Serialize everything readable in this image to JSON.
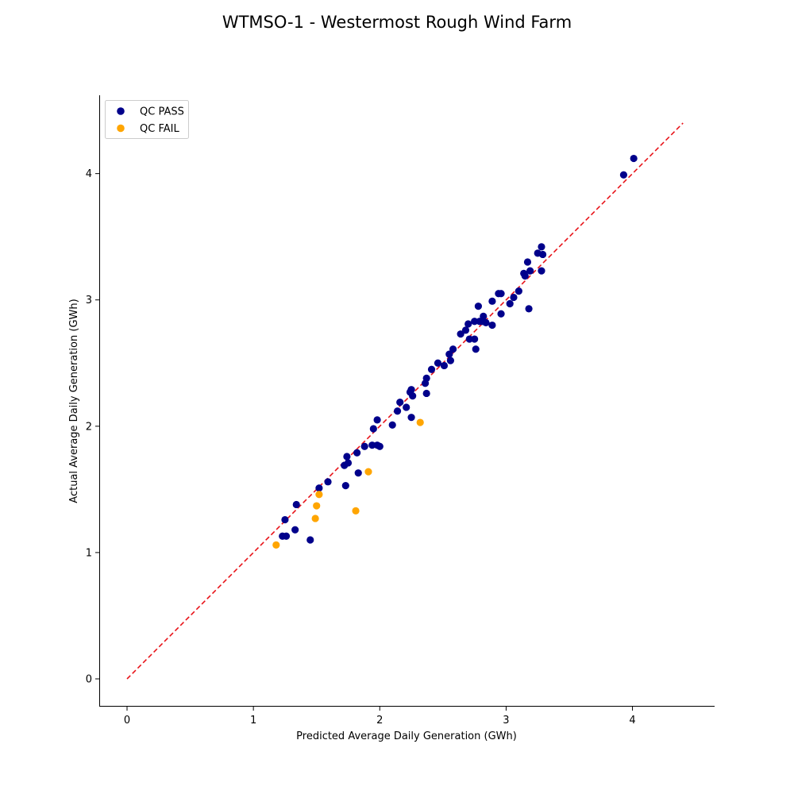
{
  "chart_data": {
    "type": "scatter",
    "title": "WTMSO-1 - Westermost Rough Wind Farm",
    "xlabel": "Predicted Average Daily Generation (GWh)",
    "ylabel": "Actual Average Daily Generation (GWh)",
    "xlim": [
      -0.22,
      4.65
    ],
    "ylim": [
      -0.22,
      4.62
    ],
    "xticks": [
      0,
      1,
      2,
      3,
      4
    ],
    "yticks": [
      0,
      1,
      2,
      3,
      4
    ],
    "xtick_labels": [
      "0",
      "1",
      "2",
      "3",
      "4"
    ],
    "ytick_labels": [
      "0",
      "1",
      "2",
      "3",
      "4"
    ],
    "grid": false,
    "legend_position": "top-left",
    "reference_line": {
      "style": "dashed",
      "color": "#e8141a",
      "x": [
        0,
        4.4
      ],
      "y": [
        0,
        4.4
      ]
    },
    "series": [
      {
        "name": "QC PASS",
        "color": "#00008b",
        "x": [
          4.01,
          3.93,
          3.28,
          3.25,
          3.29,
          3.17,
          3.19,
          3.14,
          3.15,
          3.28,
          3.1,
          3.06,
          2.94,
          2.96,
          3.03,
          2.89,
          2.78,
          3.18,
          2.82,
          2.96,
          2.75,
          2.7,
          2.81,
          2.84,
          2.79,
          2.68,
          2.89,
          2.64,
          2.71,
          2.75,
          2.76,
          2.58,
          2.55,
          2.56,
          2.46,
          2.51,
          2.41,
          2.37,
          2.36,
          2.37,
          2.25,
          2.24,
          2.26,
          2.16,
          2.14,
          2.21,
          2.25,
          1.98,
          2.1,
          1.95,
          1.94,
          1.98,
          2.0,
          1.88,
          1.82,
          1.74,
          1.75,
          1.72,
          1.83,
          1.73,
          1.59,
          1.52,
          1.34,
          1.25,
          1.33,
          1.23,
          1.26,
          1.45
        ],
        "y": [
          4.12,
          3.99,
          3.42,
          3.37,
          3.36,
          3.3,
          3.23,
          3.21,
          3.19,
          3.23,
          3.07,
          3.02,
          3.05,
          3.05,
          2.97,
          2.99,
          2.95,
          2.93,
          2.87,
          2.89,
          2.83,
          2.81,
          2.83,
          2.82,
          2.83,
          2.76,
          2.8,
          2.73,
          2.69,
          2.69,
          2.61,
          2.61,
          2.57,
          2.52,
          2.5,
          2.48,
          2.45,
          2.38,
          2.34,
          2.26,
          2.29,
          2.27,
          2.24,
          2.19,
          2.12,
          2.15,
          2.07,
          2.05,
          2.01,
          1.98,
          1.85,
          1.85,
          1.84,
          1.84,
          1.79,
          1.76,
          1.71,
          1.69,
          1.63,
          1.53,
          1.56,
          1.51,
          1.38,
          1.26,
          1.18,
          1.13,
          1.13,
          1.1
        ]
      },
      {
        "name": "QC FAIL",
        "color": "#ffa500",
        "x": [
          2.32,
          1.91,
          1.52,
          1.5,
          1.49,
          1.81,
          1.18
        ],
        "y": [
          2.03,
          1.64,
          1.46,
          1.37,
          1.27,
          1.33,
          1.06
        ]
      }
    ]
  }
}
